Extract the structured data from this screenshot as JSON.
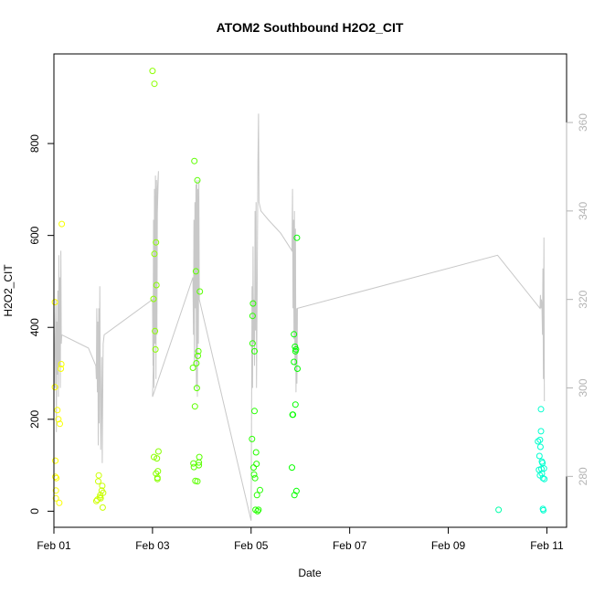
{
  "chart_data": {
    "type": "scatter",
    "title": "ATOM2 Southbound H2O2_CIT",
    "xlabel": "Date",
    "ylabel": "H2O2_CIT",
    "xlim": [
      0,
      10.4
    ],
    "ylim": [
      -35,
      995
    ],
    "y2lim": [
      268.5,
      375.5
    ],
    "x_ticks": [
      0,
      2,
      4,
      6,
      8,
      10
    ],
    "x_tick_labels": [
      "Feb 01",
      "Feb 03",
      "Feb 05",
      "Feb 07",
      "Feb 09",
      "Feb 11"
    ],
    "y_ticks": [
      0,
      200,
      400,
      600,
      800
    ],
    "y2_ticks": [
      280,
      300,
      320,
      340,
      360
    ],
    "grid": false,
    "legend": "none",
    "colors": {
      "line": "#c8c8c8",
      "right_axis_text": "#b4b4b4"
    },
    "points": [
      {
        "x": 0.02,
        "y": 455
      },
      {
        "x": 0.02,
        "y": 270
      },
      {
        "x": 0.03,
        "y": 110
      },
      {
        "x": 0.03,
        "y": 75
      },
      {
        "x": 0.04,
        "y": 45
      },
      {
        "x": 0.04,
        "y": 28
      },
      {
        "x": 0.05,
        "y": 72
      },
      {
        "x": 0.07,
        "y": 220
      },
      {
        "x": 0.09,
        "y": 200
      },
      {
        "x": 0.11,
        "y": 18
      },
      {
        "x": 0.12,
        "y": 190
      },
      {
        "x": 0.14,
        "y": 310
      },
      {
        "x": 0.15,
        "y": 320
      },
      {
        "x": 0.16,
        "y": 625
      },
      {
        "x": 0.86,
        "y": 22
      },
      {
        "x": 0.88,
        "y": 25
      },
      {
        "x": 0.9,
        "y": 65
      },
      {
        "x": 0.91,
        "y": 78
      },
      {
        "x": 0.93,
        "y": 30
      },
      {
        "x": 0.94,
        "y": 35
      },
      {
        "x": 0.95,
        "y": 28
      },
      {
        "x": 0.97,
        "y": 45
      },
      {
        "x": 0.98,
        "y": 55
      },
      {
        "x": 0.99,
        "y": 8
      },
      {
        "x": 1.0,
        "y": 40
      },
      {
        "x": 2.0,
        "y": 958
      },
      {
        "x": 2.02,
        "y": 462
      },
      {
        "x": 2.03,
        "y": 118
      },
      {
        "x": 2.04,
        "y": 930
      },
      {
        "x": 2.04,
        "y": 560
      },
      {
        "x": 2.05,
        "y": 392
      },
      {
        "x": 2.06,
        "y": 352
      },
      {
        "x": 2.07,
        "y": 585
      },
      {
        "x": 2.07,
        "y": 82
      },
      {
        "x": 2.08,
        "y": 492
      },
      {
        "x": 2.09,
        "y": 115
      },
      {
        "x": 2.1,
        "y": 73
      },
      {
        "x": 2.1,
        "y": 70
      },
      {
        "x": 2.11,
        "y": 87
      },
      {
        "x": 2.12,
        "y": 130
      },
      {
        "x": 2.82,
        "y": 312
      },
      {
        "x": 2.83,
        "y": 104
      },
      {
        "x": 2.84,
        "y": 96
      },
      {
        "x": 2.85,
        "y": 762
      },
      {
        "x": 2.86,
        "y": 228
      },
      {
        "x": 2.87,
        "y": 66
      },
      {
        "x": 2.88,
        "y": 522
      },
      {
        "x": 2.89,
        "y": 322
      },
      {
        "x": 2.9,
        "y": 268
      },
      {
        "x": 2.91,
        "y": 65
      },
      {
        "x": 2.91,
        "y": 720
      },
      {
        "x": 2.92,
        "y": 338
      },
      {
        "x": 2.93,
        "y": 348
      },
      {
        "x": 2.94,
        "y": 100
      },
      {
        "x": 2.94,
        "y": 106
      },
      {
        "x": 2.95,
        "y": 118
      },
      {
        "x": 2.96,
        "y": 478
      },
      {
        "x": 4.02,
        "y": 157
      },
      {
        "x": 4.03,
        "y": 365
      },
      {
        "x": 4.03,
        "y": 425
      },
      {
        "x": 4.04,
        "y": 452
      },
      {
        "x": 4.05,
        "y": 95
      },
      {
        "x": 4.06,
        "y": 80
      },
      {
        "x": 4.07,
        "y": 348
      },
      {
        "x": 4.07,
        "y": 218
      },
      {
        "x": 4.08,
        "y": 72
      },
      {
        "x": 4.09,
        "y": 3
      },
      {
        "x": 4.1,
        "y": 128
      },
      {
        "x": 4.11,
        "y": 103
      },
      {
        "x": 4.12,
        "y": 35
      },
      {
        "x": 4.13,
        "y": 0
      },
      {
        "x": 4.15,
        "y": 3
      },
      {
        "x": 4.18,
        "y": 46
      },
      {
        "x": 4.83,
        "y": 95
      },
      {
        "x": 4.84,
        "y": 210
      },
      {
        "x": 4.85,
        "y": 210
      },
      {
        "x": 4.87,
        "y": 385
      },
      {
        "x": 4.87,
        "y": 325
      },
      {
        "x": 4.88,
        "y": 35
      },
      {
        "x": 4.89,
        "y": 358
      },
      {
        "x": 4.9,
        "y": 348
      },
      {
        "x": 4.9,
        "y": 232
      },
      {
        "x": 4.91,
        "y": 352
      },
      {
        "x": 4.92,
        "y": 44
      },
      {
        "x": 4.93,
        "y": 595
      },
      {
        "x": 4.94,
        "y": 310
      },
      {
        "x": 9.02,
        "y": 3
      },
      {
        "x": 9.82,
        "y": 152
      },
      {
        "x": 9.84,
        "y": 90
      },
      {
        "x": 9.85,
        "y": 120
      },
      {
        "x": 9.86,
        "y": 78
      },
      {
        "x": 9.86,
        "y": 155
      },
      {
        "x": 9.87,
        "y": 140
      },
      {
        "x": 9.88,
        "y": 222
      },
      {
        "x": 9.88,
        "y": 174
      },
      {
        "x": 9.89,
        "y": 92
      },
      {
        "x": 9.9,
        "y": 82
      },
      {
        "x": 9.9,
        "y": 108
      },
      {
        "x": 9.91,
        "y": 105
      },
      {
        "x": 9.92,
        "y": 72
      },
      {
        "x": 9.92,
        "y": 5
      },
      {
        "x": 9.93,
        "y": 2
      },
      {
        "x": 9.94,
        "y": 93
      },
      {
        "x": 9.95,
        "y": 70
      }
    ],
    "line": [
      [
        0.0,
        318
      ],
      [
        0.02,
        300
      ],
      [
        0.03,
        312
      ],
      [
        0.04,
        320
      ],
      [
        0.05,
        290
      ],
      [
        0.06,
        315
      ],
      [
        0.07,
        303
      ],
      [
        0.08,
        322
      ],
      [
        0.09,
        298
      ],
      [
        0.1,
        330
      ],
      [
        0.11,
        305
      ],
      [
        0.12,
        325
      ],
      [
        0.13,
        300
      ],
      [
        0.14,
        331
      ],
      [
        0.15,
        310
      ],
      [
        0.16,
        312
      ],
      [
        0.7,
        309
      ],
      [
        0.85,
        305
      ],
      [
        0.86,
        302
      ],
      [
        0.87,
        318
      ],
      [
        0.88,
        299
      ],
      [
        0.89,
        315
      ],
      [
        0.9,
        287
      ],
      [
        0.91,
        318
      ],
      [
        0.92,
        292
      ],
      [
        0.93,
        323
      ],
      [
        0.95,
        286
      ],
      [
        0.97,
        307
      ],
      [
        0.98,
        283
      ],
      [
        1.0,
        310
      ],
      [
        1.02,
        312
      ],
      [
        2.0,
        320
      ],
      [
        2.01,
        305
      ],
      [
        2.02,
        338
      ],
      [
        2.03,
        300
      ],
      [
        2.04,
        345
      ],
      [
        2.05,
        310
      ],
      [
        2.06,
        348
      ],
      [
        2.07,
        302
      ],
      [
        2.08,
        347
      ],
      [
        2.09,
        312
      ],
      [
        2.1,
        345
      ],
      [
        2.12,
        349
      ],
      [
        2.0,
        298
      ],
      [
        2.82,
        325
      ],
      [
        2.83,
        312
      ],
      [
        2.84,
        338
      ],
      [
        2.85,
        305
      ],
      [
        2.86,
        342
      ],
      [
        2.87,
        318
      ],
      [
        2.88,
        346
      ],
      [
        2.89,
        300
      ],
      [
        2.9,
        347
      ],
      [
        2.91,
        298
      ],
      [
        2.92,
        345
      ],
      [
        2.93,
        310
      ],
      [
        2.94,
        347
      ],
      [
        2.95,
        320
      ],
      [
        4.0,
        270
      ],
      [
        4.02,
        323
      ],
      [
        4.03,
        300
      ],
      [
        4.04,
        332
      ],
      [
        4.05,
        310
      ],
      [
        4.06,
        320
      ],
      [
        4.07,
        305
      ],
      [
        4.08,
        340
      ],
      [
        4.09,
        313
      ],
      [
        4.1,
        342
      ],
      [
        4.11,
        300
      ],
      [
        4.12,
        315
      ],
      [
        4.14,
        352
      ],
      [
        4.15,
        362
      ],
      [
        4.16,
        342
      ],
      [
        4.2,
        340
      ],
      [
        4.35,
        338
      ],
      [
        4.6,
        335
      ],
      [
        4.83,
        331
      ],
      [
        4.84,
        345
      ],
      [
        4.85,
        318
      ],
      [
        4.86,
        338
      ],
      [
        4.87,
        311
      ],
      [
        4.88,
        340
      ],
      [
        4.89,
        305
      ],
      [
        4.9,
        336
      ],
      [
        4.91,
        299
      ],
      [
        4.92,
        318
      ],
      [
        4.93,
        301
      ],
      [
        4.94,
        318
      ],
      [
        9.0,
        330
      ],
      [
        9.86,
        318
      ],
      [
        9.87,
        321
      ],
      [
        9.88,
        318
      ],
      [
        9.89,
        320
      ],
      [
        9.9,
        319
      ],
      [
        9.91,
        312
      ],
      [
        9.92,
        327
      ],
      [
        9.93,
        302
      ],
      [
        9.94,
        334
      ],
      [
        9.95,
        297
      ]
    ]
  }
}
